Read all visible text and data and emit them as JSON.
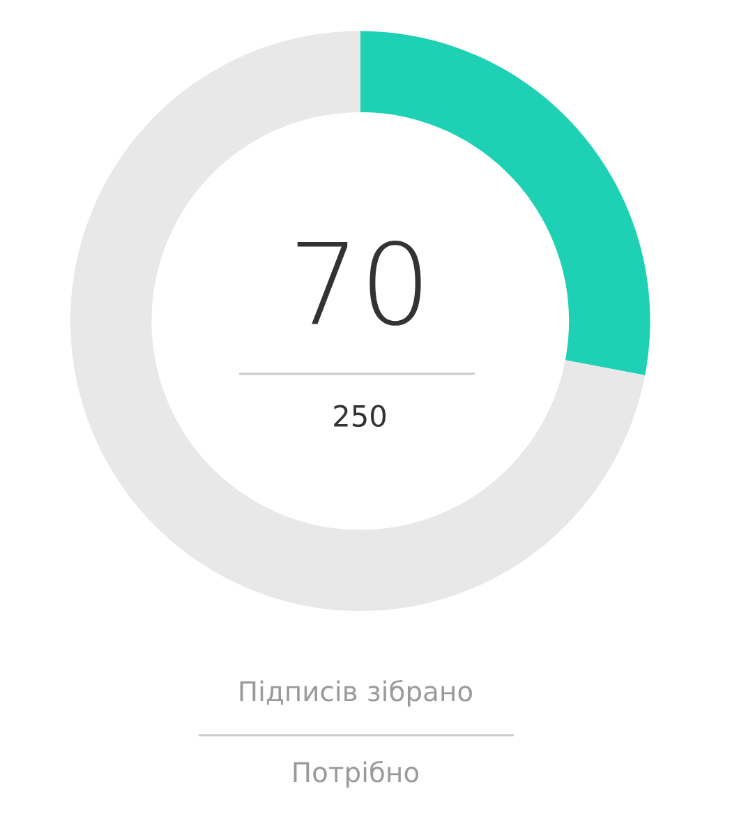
{
  "chart_data": {
    "type": "donut",
    "categories": [
      null,
      null
    ],
    "values": [
      28,
      72
    ],
    "colors": [
      "#1fd1b4",
      "#e8e8e8"
    ],
    "annotations": [
      "70",
      "250",
      "Підписів зібрано",
      "Потрібно"
    ]
  }
}
